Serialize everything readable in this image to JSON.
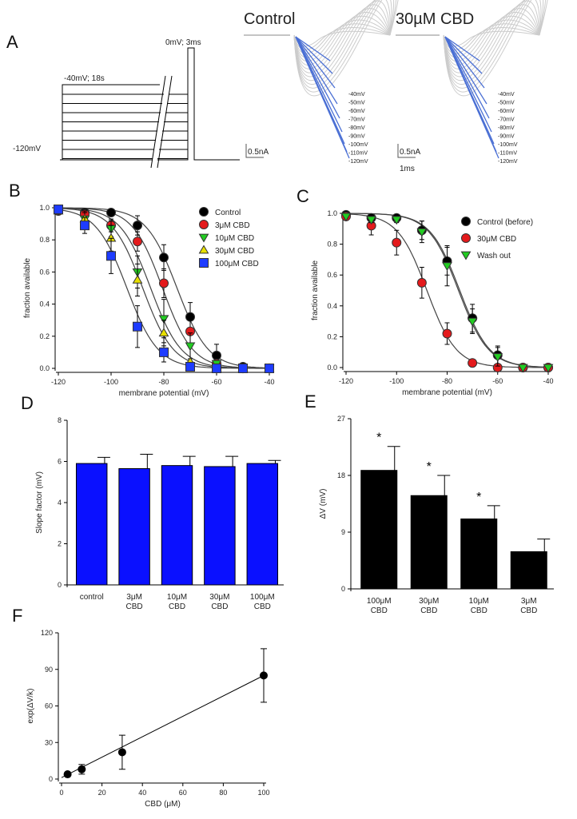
{
  "panel_a": {
    "letter": "A",
    "title_control": "Control",
    "title_cbd": "30µM CBD",
    "hold_label": "-40mV; 18s",
    "test_label": "0mV; 3ms",
    "base_label": "-120mV",
    "scale_current": "0.5nA",
    "scale_time": "1ms",
    "trace_labels": [
      "-40mV",
      "-50mV",
      "-60mV",
      "-70mV",
      "-80mV",
      "-90mV",
      "-100mV",
      "-110mV",
      "-120mV"
    ],
    "trace_color": "#4a6fd4"
  },
  "chart_data": [
    {
      "id": "B",
      "letter": "B",
      "type": "scatter",
      "xlabel": "membrane potential (mV)",
      "ylabel": "fraction available",
      "xlim": [
        -120,
        -40
      ],
      "ylim": [
        0,
        1
      ],
      "xticks": [
        -120,
        -100,
        -80,
        -60,
        -40
      ],
      "yticks": [
        "0.0",
        "0.2",
        "0.4",
        "0.6",
        "0.8",
        "1.0"
      ],
      "legend": "top-right",
      "x": [
        -120,
        -110,
        -100,
        -90,
        -80,
        -70,
        -60,
        -50,
        -40
      ],
      "series": [
        {
          "name": "Control",
          "color": "#000000",
          "marker": "circle",
          "vhalf": -75,
          "k": 5.9,
          "values": [
            0.99,
            0.97,
            0.97,
            0.89,
            0.69,
            0.32,
            0.08,
            0.01,
            0.0
          ],
          "err": [
            0.01,
            0.02,
            0.02,
            0.06,
            0.08,
            0.09,
            0.07,
            0.01,
            0.0
          ]
        },
        {
          "name": "3μM CBD",
          "color": "#e41a1c",
          "marker": "circle",
          "vhalf": -80.5,
          "k": 5.7,
          "values": [
            0.98,
            0.96,
            0.89,
            0.79,
            0.53,
            0.23,
            0.03,
            0.0,
            0.0
          ],
          "err": [
            0.01,
            0.03,
            0.04,
            0.06,
            0.09,
            0.08,
            0.02,
            0.0,
            0.0
          ]
        },
        {
          "name": "10μM CBD",
          "color": "#22cc22",
          "marker": "triangle-down",
          "vhalf": -85,
          "k": 5.8,
          "values": [
            0.98,
            0.93,
            0.87,
            0.6,
            0.31,
            0.14,
            0.03,
            0.0,
            0.0
          ],
          "err": [
            0.01,
            0.04,
            0.05,
            0.1,
            0.12,
            0.08,
            0.02,
            0.0,
            0.0
          ]
        },
        {
          "name": "30μM CBD",
          "color": "#e8e000",
          "marker": "triangle-up",
          "vhalf": -88,
          "k": 5.8,
          "values": [
            0.98,
            0.93,
            0.81,
            0.55,
            0.22,
            0.04,
            0.0,
            0.0,
            0.0
          ],
          "err": [
            0.01,
            0.05,
            0.08,
            0.1,
            0.08,
            0.02,
            0.0,
            0.0,
            0.0
          ]
        },
        {
          "name": "100μM CBD",
          "color": "#1e3cff",
          "marker": "square",
          "vhalf": -94,
          "k": 5.9,
          "values": [
            0.99,
            0.89,
            0.7,
            0.26,
            0.1,
            0.01,
            0.0,
            0.0,
            0.0
          ],
          "err": [
            0.01,
            0.05,
            0.11,
            0.13,
            0.06,
            0.01,
            0.0,
            0.0,
            0.0
          ]
        }
      ]
    },
    {
      "id": "C",
      "letter": "C",
      "type": "scatter",
      "xlabel": "membrane potential (mV)",
      "ylabel": "fraction available",
      "xlim": [
        -120,
        -40
      ],
      "ylim": [
        0,
        1
      ],
      "xticks": [
        -120,
        -100,
        -80,
        -60,
        -40
      ],
      "yticks": [
        "0.0",
        "0.2",
        "0.4",
        "0.6",
        "0.8",
        "1.0"
      ],
      "legend": "top-right",
      "x": [
        -120,
        -110,
        -100,
        -90,
        -80,
        -70,
        -60,
        -50,
        -40
      ],
      "series": [
        {
          "name": "Control (before)",
          "color": "#000000",
          "marker": "circle",
          "vhalf": -75,
          "k": 5.9,
          "values": [
            0.99,
            0.97,
            0.97,
            0.89,
            0.69,
            0.32,
            0.08,
            0.0,
            0.0
          ],
          "err": [
            0.01,
            0.01,
            0.02,
            0.06,
            0.09,
            0.09,
            0.06,
            0.0,
            0.0
          ]
        },
        {
          "name": "30μM CBD",
          "color": "#e41a1c",
          "marker": "circle",
          "vhalf": -88,
          "k": 5.8,
          "values": [
            0.98,
            0.92,
            0.81,
            0.55,
            0.22,
            0.03,
            0.0,
            0.0,
            0.0
          ],
          "err": [
            0.01,
            0.06,
            0.08,
            0.1,
            0.07,
            0.02,
            0.0,
            0.0,
            0.0
          ]
        },
        {
          "name": "Wash out",
          "color": "#22cc22",
          "marker": "triangle-down",
          "vhalf": -75.5,
          "k": 5.9,
          "values": [
            0.98,
            0.96,
            0.96,
            0.88,
            0.66,
            0.3,
            0.07,
            0.0,
            0.0
          ],
          "err": [
            0.01,
            0.02,
            0.02,
            0.07,
            0.13,
            0.08,
            0.06,
            0.0,
            0.0
          ]
        }
      ]
    },
    {
      "id": "D",
      "letter": "D",
      "type": "bar",
      "ylabel": "Slope factor (mV)",
      "ylim": [
        0,
        8
      ],
      "yticks": [
        "0",
        "2",
        "4",
        "6",
        "8"
      ],
      "color": "#0a10ff",
      "categories": [
        [
          "control"
        ],
        [
          "3μM",
          "CBD"
        ],
        [
          "10μM",
          "CBD"
        ],
        [
          "30μM",
          "CBD"
        ],
        [
          "100μM",
          "CBD"
        ]
      ],
      "values": [
        5.9,
        5.65,
        5.8,
        5.75,
        5.9
      ],
      "err": [
        0.3,
        0.7,
        0.45,
        0.5,
        0.15
      ]
    },
    {
      "id": "E",
      "letter": "E",
      "type": "bar",
      "ylabel": "ΔV (mV)",
      "ylim": [
        0,
        27
      ],
      "yticks": [
        "0",
        "9",
        "18",
        "27"
      ],
      "color": "#000000",
      "categories": [
        [
          "100μM",
          "CBD"
        ],
        [
          "30μM",
          "CBD"
        ],
        [
          "10μM",
          "CBD"
        ],
        [
          "3μM",
          "CBD"
        ]
      ],
      "values": [
        18.8,
        14.8,
        11.1,
        5.9
      ],
      "err": [
        3.8,
        3.2,
        2.1,
        2.0
      ],
      "annotations": [
        "*",
        "*",
        "*",
        ""
      ]
    },
    {
      "id": "F",
      "letter": "F",
      "type": "scatter",
      "xlabel": "CBD (μM)",
      "ylabel": "exp(ΔV/k)",
      "xlim": [
        0,
        100
      ],
      "ylim": [
        0,
        120
      ],
      "xticks": [
        "0",
        "20",
        "40",
        "60",
        "80",
        "100"
      ],
      "yticks": [
        "0",
        "30",
        "60",
        "90",
        "120"
      ],
      "x": [
        3,
        10,
        30,
        100
      ],
      "values": [
        3.9,
        8,
        22,
        85
      ],
      "err": [
        1,
        4,
        14,
        22
      ],
      "fit": [
        [
          0,
          1.2
        ],
        [
          100,
          85
        ]
      ]
    }
  ]
}
